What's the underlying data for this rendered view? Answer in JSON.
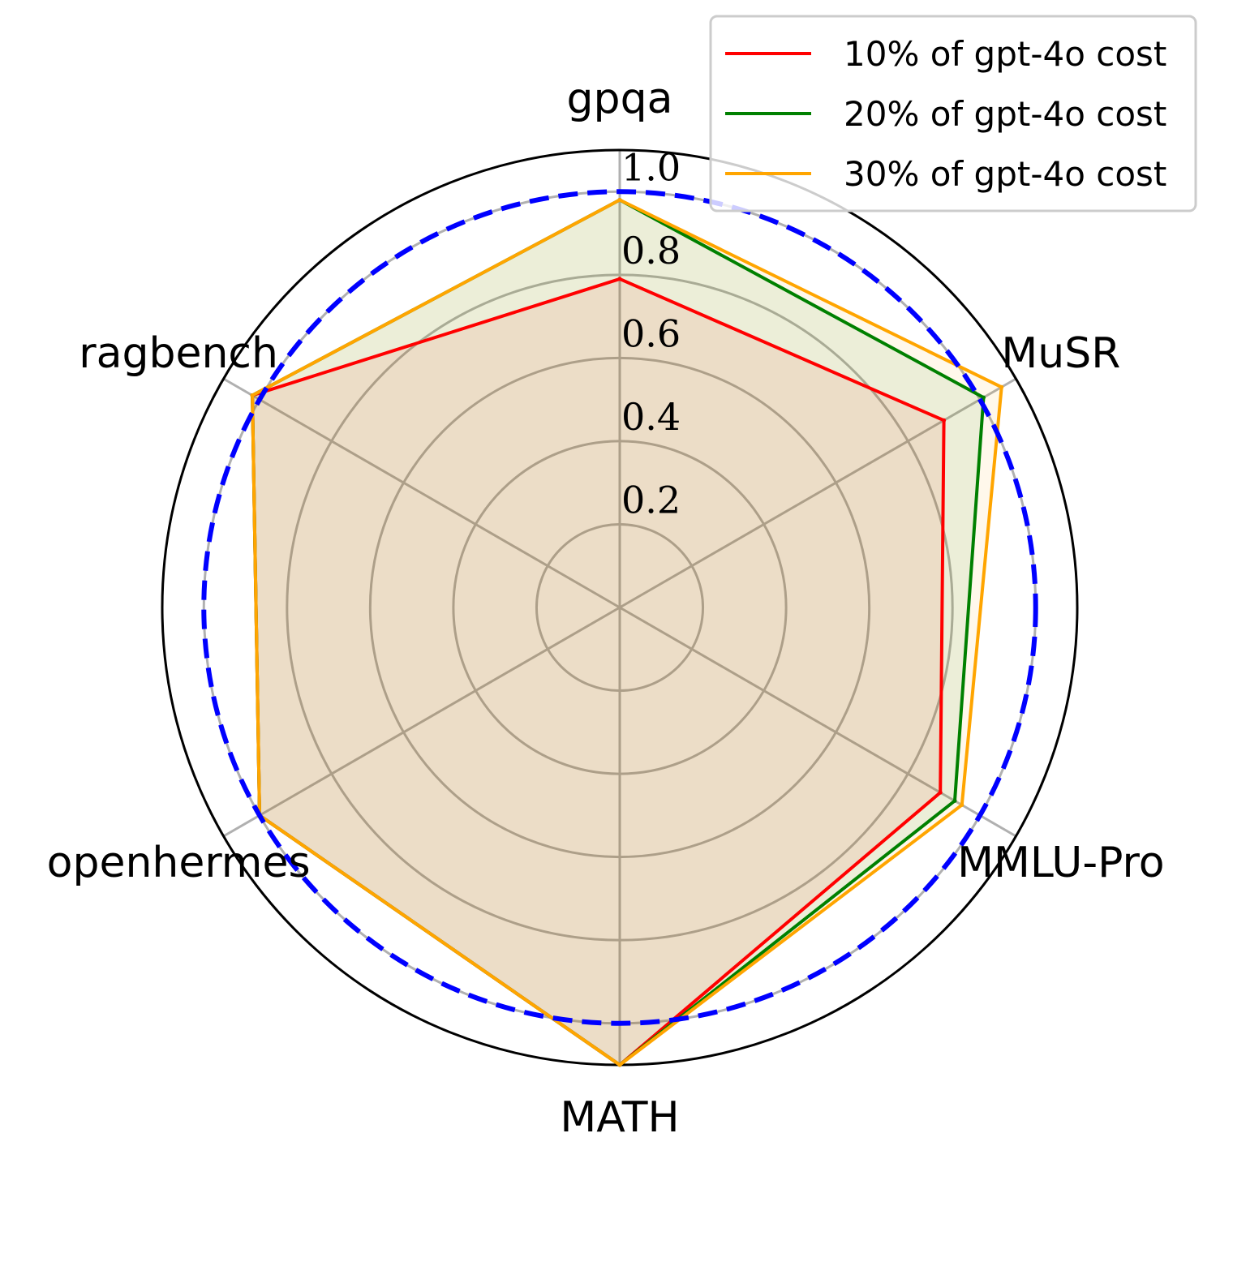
{
  "chart_data": {
    "type": "radar",
    "axes": [
      "gpqa",
      "MuSR",
      "MMLU-Pro",
      "MATH",
      "openhermes",
      "ragbench"
    ],
    "rlim": [
      0,
      1.1
    ],
    "rticks": [
      0.2,
      0.4,
      0.6,
      0.8,
      1.0
    ],
    "rtick_labels": [
      "0.2",
      "0.4",
      "0.6",
      "0.8",
      "1.0"
    ],
    "reference_level": 1.0,
    "reference_color": "#0000ff",
    "grid": true,
    "legend_position": "top-right",
    "series": [
      {
        "name": "10% of gpt-4o cost",
        "color": "#ff0000",
        "values": [
          0.79,
          0.9,
          0.89,
          1.1,
          1.0,
          1.02
        ]
      },
      {
        "name": "20% of gpt-4o cost",
        "color": "#008000",
        "values": [
          0.98,
          1.01,
          0.93,
          1.1,
          1.0,
          1.02
        ]
      },
      {
        "name": "30% of gpt-4o cost",
        "color": "#ffa500",
        "values": [
          0.98,
          1.06,
          0.95,
          1.1,
          1.0,
          1.02
        ]
      }
    ]
  }
}
